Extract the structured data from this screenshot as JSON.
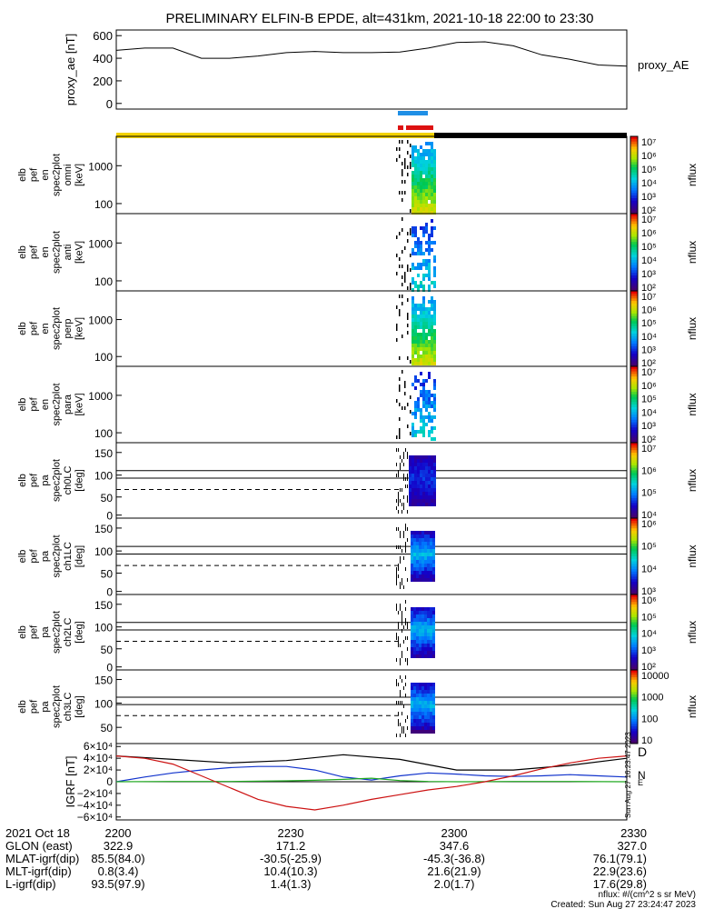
{
  "title": "PRELIMINARY ELFIN-B EPDE, alt=431km, 2021-10-18 22:00 to 23:30",
  "colors": {
    "blue_bar": "#1f8fe6",
    "red_bar": "#dd1111",
    "yellow_bar": "#f2d200",
    "black_bar": "#000000",
    "bz": "#000000",
    "by": "#1133cc",
    "bx": "#22aa22",
    "bd": "#cc1111"
  },
  "chart_data": [
    {
      "type": "line",
      "name": "proxy_ae",
      "ylabel": "proxy_ae [nT]",
      "legend": "proxy_AE",
      "yticks": [
        "600",
        "400",
        "200",
        "0"
      ],
      "ylim": [
        -50,
        650
      ],
      "xlim": [
        0,
        90
      ],
      "x": [
        0,
        5,
        10,
        15,
        20,
        25,
        30,
        35,
        40,
        45,
        50,
        55,
        60,
        65,
        70,
        75,
        80,
        85,
        90
      ],
      "values": [
        470,
        490,
        490,
        400,
        400,
        420,
        450,
        460,
        450,
        450,
        455,
        490,
        540,
        545,
        510,
        430,
        390,
        340,
        330
      ]
    },
    {
      "type": "heatmap",
      "name": "omni",
      "ylabel_lines": [
        "elb",
        "pef",
        "en",
        "spec2plot",
        "omni",
        "[keV]"
      ],
      "yticks": [
        "1000",
        "100"
      ],
      "colorbar_ticks": [
        "10⁷",
        "10⁶",
        "10⁵",
        "10⁴",
        "10³",
        "10²"
      ],
      "colorbar_label": "nflux"
    },
    {
      "type": "heatmap",
      "name": "anti",
      "ylabel_lines": [
        "elb",
        "pef",
        "en",
        "spec2plot",
        "anti",
        "[keV]"
      ],
      "yticks": [
        "1000",
        "100"
      ],
      "colorbar_ticks": [
        "10⁷",
        "10⁶",
        "10⁵",
        "10⁴",
        "10³",
        "10²"
      ],
      "colorbar_label": "nflux"
    },
    {
      "type": "heatmap",
      "name": "perp",
      "ylabel_lines": [
        "elb",
        "pef",
        "en",
        "spec2plot",
        "perp",
        "[keV]"
      ],
      "yticks": [
        "1000",
        "100"
      ],
      "colorbar_ticks": [
        "10⁷",
        "10⁶",
        "10⁵",
        "10⁴",
        "10³",
        "10²"
      ],
      "colorbar_label": "nflux"
    },
    {
      "type": "heatmap",
      "name": "para",
      "ylabel_lines": [
        "elb",
        "pef",
        "en",
        "spec2plot",
        "para",
        "[keV]"
      ],
      "yticks": [
        "1000",
        "100"
      ],
      "colorbar_ticks": [
        "10⁷",
        "10⁶",
        "10⁵",
        "10⁴",
        "10³",
        "10²"
      ],
      "colorbar_label": "nflux"
    },
    {
      "type": "heatmap",
      "name": "ch0LC",
      "ylabel_lines": [
        "elb",
        "pef",
        "pa",
        "spec2plot",
        "ch0LC",
        "[deg]"
      ],
      "yticks": [
        "150",
        "100",
        "50",
        "0"
      ],
      "colorbar_ticks": [
        "10⁷",
        "10⁶",
        "10⁵",
        "10⁴"
      ],
      "colorbar_label": "nflux"
    },
    {
      "type": "heatmap",
      "name": "ch1LC",
      "ylabel_lines": [
        "elb",
        "pef",
        "pa",
        "spec2plot",
        "ch1LC",
        "[deg]"
      ],
      "yticks": [
        "150",
        "100",
        "50",
        "0"
      ],
      "colorbar_ticks": [
        "10⁶",
        "10⁵",
        "10⁴",
        "10³"
      ],
      "colorbar_label": "nflux"
    },
    {
      "type": "heatmap",
      "name": "ch2LC",
      "ylabel_lines": [
        "elb",
        "pef",
        "pa",
        "spec2plot",
        "ch2LC",
        "[deg]"
      ],
      "yticks": [
        "150",
        "100",
        "50",
        "0"
      ],
      "colorbar_ticks": [
        "10⁶",
        "10⁵",
        "10⁴",
        "10³",
        "10²"
      ],
      "colorbar_label": "nflux"
    },
    {
      "type": "heatmap",
      "name": "ch3LC",
      "ylabel_lines": [
        "elb",
        "pef",
        "pa",
        "spec2plot",
        "ch3LC",
        "[deg]"
      ],
      "yticks": [
        "150",
        "100",
        "50"
      ],
      "colorbar_ticks": [
        "10000",
        "1000",
        "100",
        "10"
      ],
      "colorbar_label": "nflux"
    },
    {
      "type": "line",
      "name": "IGRF",
      "ylabel": "IGRF [nT]",
      "yticks": [
        "6×10⁴",
        "4×10⁴",
        "2×10⁴",
        "0",
        "−2×10⁴",
        "−4×10⁴",
        "−6×10⁴"
      ],
      "ylim": [
        -65000,
        65000
      ],
      "xlim": [
        0,
        90
      ],
      "legend": [
        "D",
        "N",
        "E"
      ],
      "side_note": "Sun Aug 27 16:23:47 2023",
      "series": [
        {
          "key": "bz",
          "x": [
            0,
            10,
            20,
            30,
            40,
            50,
            60,
            70,
            80,
            90
          ],
          "values": [
            44000,
            38000,
            32000,
            36000,
            46000,
            38000,
            20000,
            20000,
            28000,
            40000
          ]
        },
        {
          "key": "by",
          "x": [
            0,
            5,
            10,
            15,
            20,
            25,
            30,
            35,
            40,
            45,
            50,
            55,
            60,
            65,
            70,
            75,
            80,
            85,
            90
          ],
          "values": [
            0,
            8000,
            15000,
            20000,
            24000,
            26000,
            26000,
            20000,
            8000,
            3000,
            10000,
            15000,
            13000,
            10000,
            9000,
            10000,
            12000,
            10000,
            8000
          ]
        },
        {
          "key": "bx",
          "x": [
            0,
            10,
            20,
            30,
            35,
            40,
            45,
            50,
            55,
            60,
            70,
            80,
            90
          ],
          "values": [
            0,
            500,
            500,
            1500,
            2500,
            4000,
            6000,
            2000,
            500,
            0,
            500,
            500,
            0
          ]
        },
        {
          "key": "bd",
          "x": [
            0,
            5,
            10,
            15,
            20,
            25,
            30,
            35,
            40,
            45,
            50,
            55,
            60,
            65,
            70,
            75,
            80,
            85,
            90
          ],
          "values": [
            44000,
            40000,
            30000,
            10000,
            -10000,
            -30000,
            -42000,
            -48000,
            -40000,
            -30000,
            -22000,
            -14000,
            -8000,
            0,
            10000,
            22000,
            32000,
            40000,
            44000
          ]
        }
      ]
    }
  ],
  "footer": {
    "rows": [
      {
        "label": "2021 Oct 18",
        "values": [
          "2200",
          "2230",
          "2300",
          "2330"
        ]
      },
      {
        "label": "GLON (east)",
        "values": [
          "322.9",
          "171.2",
          "347.6",
          "327.0"
        ]
      },
      {
        "label": "MLAT-igrf(dip)",
        "values": [
          "85.5(84.0)",
          "-30.5(-25.9)",
          "-45.3(-36.8)",
          "76.1(79.1)"
        ]
      },
      {
        "label": "MLT-igrf(dip)",
        "values": [
          "0.8(3.4)",
          "10.4(10.3)",
          "21.6(21.9)",
          "22.9(23.6)"
        ]
      },
      {
        "label": "L-igrf(dip)",
        "values": [
          "93.5(97.9)",
          "1.4(1.3)",
          "2.0(1.7)",
          "17.6(29.8)"
        ]
      }
    ],
    "note_units": "nflux: #/(cm^2 s sr MeV)",
    "note_created": "Created: Sun Aug 27 23:24:47 2023"
  }
}
